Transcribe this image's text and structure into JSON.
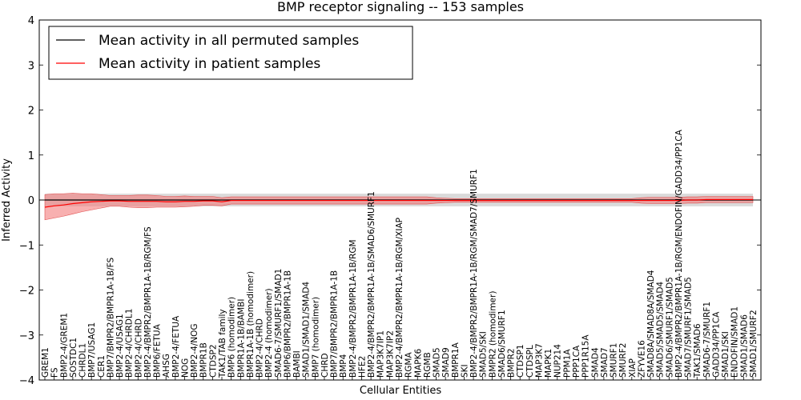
{
  "chart_data": {
    "type": "line",
    "title": "BMP receptor signaling -- 153 samples",
    "xlabel": "Cellular Entities",
    "ylabel": "Inferred Activity",
    "ylim": [
      -4,
      4
    ],
    "yticks": [
      "-4",
      "-3",
      "-2",
      "-1",
      "0",
      "1",
      "2",
      "3",
      "4"
    ],
    "legend_position": "top-left",
    "colors": {
      "permuted": "#000000",
      "patient": "#ff0000",
      "permuted_band": "#bbbbbb",
      "patient_band": "#f47c7c"
    },
    "categories": [
      "GREM1",
      "FS",
      "BMP2-4/GREM1",
      "SOSTDC1",
      "CHRDL1",
      "BMP7/USAG1",
      "CER1",
      "BMP7/BMPR2/BMPR1A-1B/FS",
      "BMP2-4/USAG1",
      "BMP2-4/CHRDL1",
      "BMP2-4/CHRD",
      "BMP2-4/BMPR2/BMPR1A-1B/RGM/FS",
      "BMP6/FETUA",
      "AHSG",
      "BMP2-4/FETUA",
      "NOG",
      "BMP2-4/NOG",
      "BMPR1B",
      "CTDSP2",
      "TAK1/TAB family",
      "BMP6 (homodimer)",
      "BMPR1A-1B/BAMBI",
      "BMPR1A-1B (homodimer)",
      "BMP2-4/CHRD",
      "BMP2-4 (homodimer)",
      "SMAD6-7/SMURF1/SMAD1",
      "BMP6/BMPR2/BMPR1A-1B",
      "BAMBI",
      "SMAD1/SMAD1/SMAD4",
      "BMP7 (homodimer)",
      "CHRD",
      "BMP7/BMPR2/BMPR1A-1B",
      "BMP4",
      "BMP2-4/BMPR2/BMPR1A-1B/RGM",
      "HFE2",
      "BMP2-4/BMPR2/BMPR1A-1B/SMAD6/SMURF1",
      "MAP3K7IP1",
      "MAP3K7IP2",
      "BMP2-4/BMPR2/BMPR1A-1B/RGM/XIAP",
      "RGMA",
      "MAPK6",
      "RGMB",
      "SMAD5",
      "SMAD9",
      "BMPR1A",
      "SKI",
      "BMP2-4/BMPR2/BMPR1A-1B/RGM/SMAD7/SMURF1",
      "SMAD5/SKI",
      "BMPR2 (homodimer)",
      "SMAD6/SMURF1",
      "BMPR2",
      "CTDSP1",
      "CTDSPL",
      "MAP3K7",
      "MAPK1",
      "NUP214",
      "PPM1A",
      "PPP1CA",
      "PPP1R15A",
      "SMAD4",
      "SMAD7",
      "SMURF1",
      "SMURF2",
      "XIAP",
      "ZFYVE16",
      "SMAD8A/SMAD8A/SMAD4",
      "SMAD5/SMAD5/SMAD4",
      "SMAD6/SMURF1/SMAD5",
      "BMP2-4/BMPR2/BMPR1A-1B/RGM/ENDOFIN/GADD34/PP1CA",
      "SMAD7/SMURF1/SMAD5",
      "TAK1/SMAD6",
      "SMAD6-7/SMURF1",
      "GADD34/PP1CA",
      "SMAD1/SKI",
      "ENDOFIN/SMAD1",
      "SMAD1/SMAD6",
      "SMAD1/SMURF2"
    ],
    "series": [
      {
        "name": "Mean activity in all permuted samples",
        "mean": [
          0,
          0,
          0,
          0,
          0,
          0,
          0,
          0,
          0,
          0,
          0,
          0,
          0,
          0,
          0,
          0,
          0,
          0,
          0,
          0,
          0,
          0,
          0,
          0,
          0,
          0,
          0,
          0,
          0,
          0,
          0,
          0,
          0,
          0,
          0,
          0,
          0,
          0,
          0,
          0,
          0,
          0,
          0,
          0,
          0,
          0,
          0,
          0,
          0,
          0,
          0,
          0,
          0,
          0,
          0,
          0,
          0,
          0,
          0,
          0,
          0,
          0,
          0,
          0,
          0,
          0,
          0,
          0,
          0,
          0,
          0,
          0,
          0,
          0,
          0,
          0,
          0
        ],
        "band_half_width": [
          0.14,
          0.14,
          0.14,
          0.14,
          0.14,
          0.14,
          0.14,
          0.14,
          0.14,
          0.14,
          0.14,
          0.14,
          0.14,
          0.14,
          0.14,
          0.14,
          0.14,
          0.14,
          0.14,
          0.14,
          0.14,
          0.14,
          0.14,
          0.14,
          0.14,
          0.14,
          0.14,
          0.14,
          0.14,
          0.14,
          0.14,
          0.14,
          0.14,
          0.14,
          0.14,
          0.14,
          0.14,
          0.14,
          0.14,
          0.14,
          0.14,
          0.14,
          0.14,
          0.14,
          0.14,
          0.14,
          0.14,
          0.14,
          0.14,
          0.14,
          0.14,
          0.14,
          0.14,
          0.14,
          0.14,
          0.14,
          0.14,
          0.14,
          0.14,
          0.14,
          0.14,
          0.14,
          0.14,
          0.14,
          0.14,
          0.14,
          0.14,
          0.14,
          0.14,
          0.14,
          0.14,
          0.14,
          0.14,
          0.14,
          0.14,
          0.14,
          0.14
        ]
      },
      {
        "name": "Mean activity in patient samples",
        "mean": [
          -0.16,
          -0.13,
          -0.11,
          -0.08,
          -0.06,
          -0.04,
          -0.03,
          -0.02,
          -0.02,
          -0.03,
          -0.03,
          -0.03,
          -0.03,
          -0.04,
          -0.04,
          -0.03,
          -0.03,
          -0.02,
          -0.02,
          -0.04,
          -0.01,
          -0.01,
          -0.01,
          -0.01,
          -0.01,
          -0.01,
          -0.01,
          -0.01,
          -0.01,
          -0.01,
          -0.01,
          -0.01,
          -0.01,
          -0.01,
          -0.01,
          -0.01,
          -0.01,
          -0.01,
          -0.01,
          -0.01,
          -0.01,
          -0.01,
          -0.01,
          -0.01,
          -0.01,
          -0.01,
          -0.01,
          -0.01,
          -0.01,
          -0.01,
          -0.01,
          -0.01,
          -0.01,
          -0.01,
          -0.01,
          -0.01,
          -0.01,
          -0.01,
          -0.01,
          -0.01,
          -0.01,
          -0.01,
          -0.01,
          -0.01,
          -0.01,
          -0.01,
          -0.01,
          -0.01,
          -0.01,
          0,
          0,
          0.01,
          0.01,
          0.01,
          0.01,
          0.01,
          0.01
        ],
        "band_half_width": [
          0.28,
          0.27,
          0.25,
          0.23,
          0.2,
          0.18,
          0.15,
          0.12,
          0.12,
          0.13,
          0.14,
          0.14,
          0.13,
          0.12,
          0.12,
          0.12,
          0.11,
          0.1,
          0.1,
          0.09,
          0.08,
          0.08,
          0.08,
          0.08,
          0.08,
          0.08,
          0.08,
          0.08,
          0.08,
          0.08,
          0.08,
          0.08,
          0.08,
          0.08,
          0.08,
          0.08,
          0.08,
          0.08,
          0.08,
          0.08,
          0.08,
          0.08,
          0.06,
          0.05,
          0.04,
          0.04,
          0.04,
          0.04,
          0.04,
          0.04,
          0.04,
          0.04,
          0.04,
          0.04,
          0.04,
          0.04,
          0.04,
          0.04,
          0.04,
          0.04,
          0.04,
          0.04,
          0.04,
          0.04,
          0.06,
          0.07,
          0.07,
          0.07,
          0.07,
          0.07,
          0.07,
          0.07,
          0.07,
          0.07,
          0.07,
          0.07,
          0.07
        ]
      }
    ]
  }
}
